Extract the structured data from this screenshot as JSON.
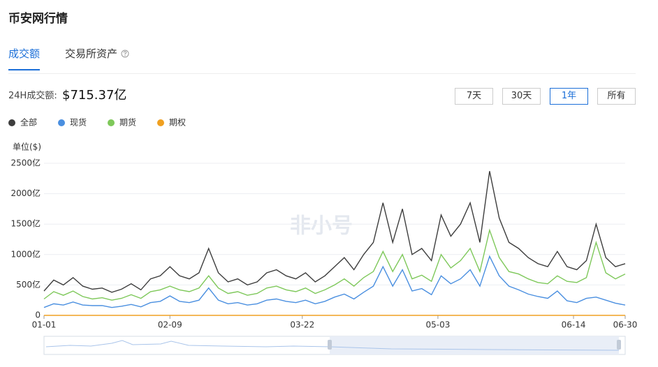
{
  "header": {
    "title": "币安网行情"
  },
  "tabs": [
    {
      "label": "成交额",
      "active": true
    },
    {
      "label": "交易所资产",
      "active": false
    }
  ],
  "summary": {
    "label": "24H成交额:",
    "value": "$715.37亿"
  },
  "range_buttons": [
    {
      "label": "7天",
      "active": false
    },
    {
      "label": "30天",
      "active": false
    },
    {
      "label": "1年",
      "active": true
    },
    {
      "label": "所有",
      "active": false
    }
  ],
  "watermark": "非小号",
  "chart_data": {
    "type": "line",
    "y_unit_label": "单位($)",
    "x": [
      0,
      3,
      6,
      9,
      12,
      15,
      18,
      21,
      24,
      27,
      30,
      33,
      36,
      39,
      42,
      45,
      48,
      51,
      54,
      57,
      60,
      63,
      66,
      69,
      72,
      75,
      78,
      81,
      84,
      87,
      90,
      93,
      96,
      99,
      102,
      105,
      108,
      111,
      114,
      117,
      120,
      123,
      126,
      129,
      132,
      135,
      138,
      141,
      144,
      147,
      150,
      153,
      156,
      159,
      162,
      165,
      168,
      171,
      174,
      177,
      180
    ],
    "xlim": [
      0,
      180
    ],
    "xticks": [
      {
        "value": 0,
        "label": "01-01"
      },
      {
        "value": 39,
        "label": "02-09"
      },
      {
        "value": 80,
        "label": "03-22"
      },
      {
        "value": 122,
        "label": "05-03"
      },
      {
        "value": 164,
        "label": "06-14"
      },
      {
        "value": 180,
        "label": "06-30"
      }
    ],
    "ylim": [
      0,
      2500
    ],
    "yticks": [
      0,
      {
        "value": 500,
        "label": "500亿"
      },
      {
        "value": 1000,
        "label": "1000亿"
      },
      {
        "value": 1500,
        "label": "1500亿"
      },
      {
        "value": 2000,
        "label": "2000亿"
      },
      {
        "value": 2500,
        "label": "2500亿"
      }
    ],
    "grid": true,
    "series": [
      {
        "name": "全部",
        "color": "#3d3d3d",
        "values": [
          400,
          580,
          500,
          620,
          480,
          430,
          450,
          380,
          430,
          520,
          420,
          600,
          650,
          800,
          650,
          600,
          700,
          1100,
          700,
          550,
          600,
          500,
          550,
          700,
          750,
          650,
          600,
          700,
          550,
          650,
          800,
          950,
          750,
          1000,
          1200,
          1850,
          1200,
          1750,
          1000,
          1100,
          900,
          1650,
          1300,
          1500,
          1850,
          1200,
          2370,
          1600,
          1200,
          1100,
          950,
          850,
          800,
          1050,
          800,
          750,
          900,
          1500,
          950,
          800,
          850
        ]
      },
      {
        "name": "现货",
        "color": "#4a8fe0",
        "values": [
          130,
          190,
          170,
          220,
          170,
          160,
          160,
          130,
          150,
          180,
          140,
          210,
          230,
          320,
          230,
          210,
          250,
          450,
          250,
          190,
          210,
          170,
          190,
          250,
          270,
          230,
          210,
          250,
          190,
          230,
          300,
          350,
          270,
          380,
          480,
          800,
          480,
          750,
          400,
          440,
          340,
          650,
          520,
          600,
          750,
          480,
          970,
          650,
          480,
          420,
          350,
          310,
          280,
          400,
          240,
          210,
          280,
          300,
          250,
          200,
          170
        ]
      },
      {
        "name": "期货",
        "color": "#7ec85a",
        "values": [
          270,
          390,
          330,
          400,
          310,
          270,
          290,
          250,
          280,
          340,
          280,
          390,
          420,
          480,
          420,
          390,
          450,
          650,
          450,
          360,
          390,
          330,
          360,
          450,
          480,
          420,
          390,
          450,
          360,
          420,
          500,
          600,
          480,
          620,
          720,
          1050,
          720,
          1000,
          600,
          660,
          560,
          1000,
          780,
          900,
          1100,
          720,
          1400,
          950,
          720,
          680,
          600,
          540,
          520,
          650,
          560,
          540,
          620,
          1200,
          700,
          600,
          680
        ]
      },
      {
        "name": "期权",
        "color": "#f0a020",
        "values": [
          0,
          0,
          0,
          0,
          0,
          0,
          0,
          0,
          0,
          0,
          0,
          0,
          0,
          0,
          0,
          0,
          0,
          0,
          0,
          0,
          0,
          0,
          0,
          0,
          0,
          0,
          0,
          0,
          0,
          0,
          0,
          0,
          0,
          0,
          0,
          0,
          0,
          0,
          0,
          0,
          0,
          0,
          0,
          0,
          0,
          0,
          0,
          0,
          0,
          0,
          0,
          0,
          0,
          0,
          0,
          0,
          0,
          0,
          0,
          0,
          0
        ]
      }
    ]
  }
}
